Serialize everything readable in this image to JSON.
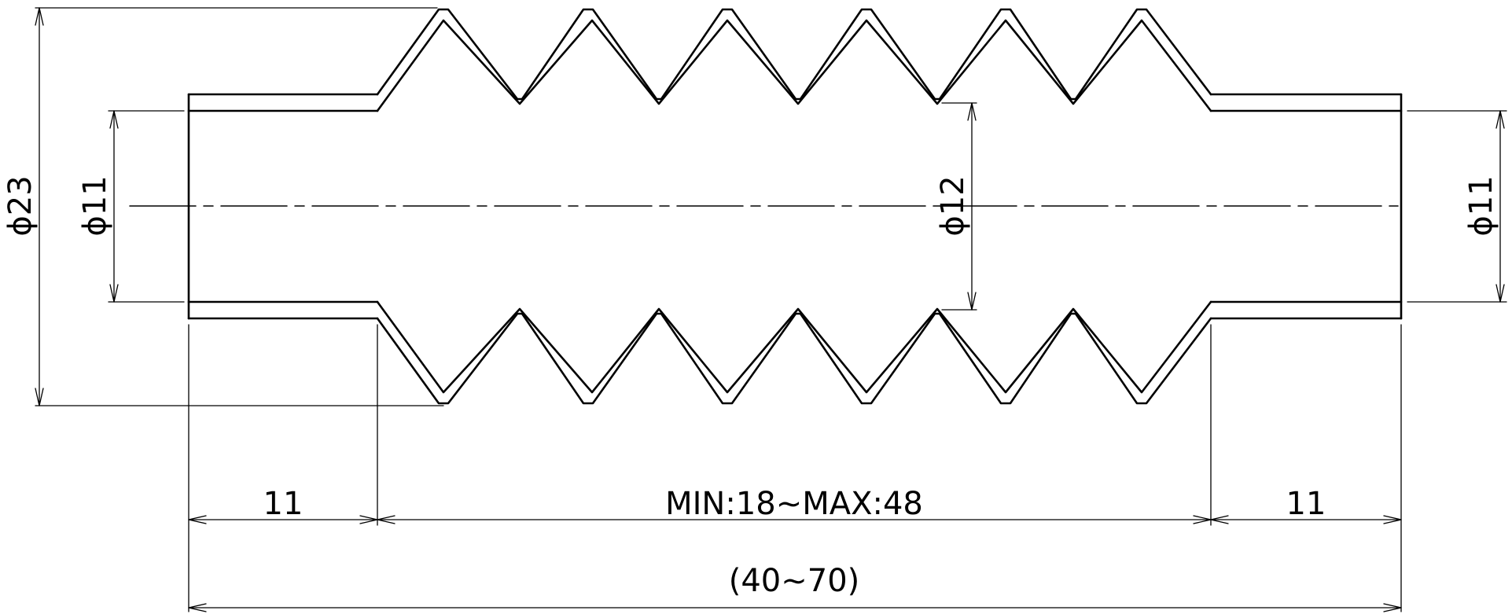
{
  "drawing": {
    "dimensions": {
      "dia_outer": "ϕ23",
      "dia_end_left": "ϕ11",
      "dia_inner": "ϕ12",
      "dia_end_right": "ϕ11",
      "len_end_left": "11",
      "len_bellows": "MIN:18∼MAX:48",
      "len_end_right": "11",
      "len_total": "(40∼70)"
    }
  }
}
